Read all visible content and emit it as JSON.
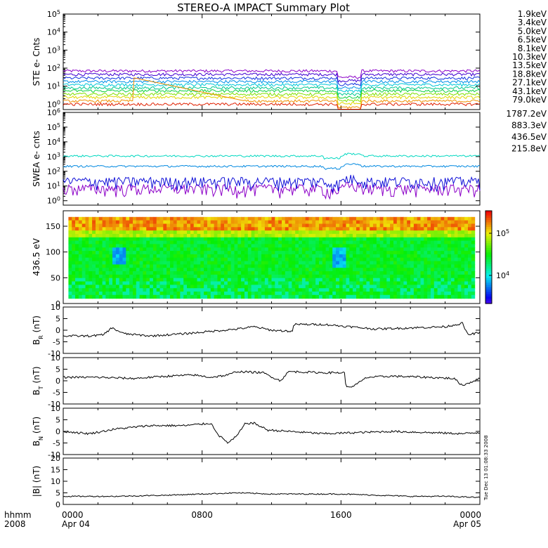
{
  "title": "STEREO-A IMPACT Summary Plot",
  "timestamp": "Tue Dec 13 01:08:33 2008",
  "x_axis": {
    "caption_lines": [
      "hhmm",
      "2008"
    ],
    "ticks": [
      {
        "lines": [
          "0000",
          "Apr 04"
        ],
        "hour": 0
      },
      {
        "lines": [
          "0800"
        ],
        "hour": 8
      },
      {
        "lines": [
          "1600"
        ],
        "hour": 16
      },
      {
        "lines": [
          "0000",
          "Apr 05"
        ],
        "hour": 24
      }
    ],
    "range_hours": [
      0,
      24
    ]
  },
  "chart_data": [
    {
      "type": "line",
      "panel": "STE",
      "ylabel": "STE e- Cnts",
      "yscale": "log",
      "ylim": [
        0.5,
        100000
      ],
      "ytick_labels": [
        "10^0",
        "10^1",
        "10^2",
        "10^3",
        "10^4",
        "10^5"
      ],
      "series": [
        {
          "name": "1.9keV",
          "color": "#8c00c8",
          "baseline": 70
        },
        {
          "name": "3.4keV",
          "color": "#4000d0",
          "baseline": 45
        },
        {
          "name": "5.0keV",
          "color": "#1030e0",
          "baseline": 28
        },
        {
          "name": "6.5keV",
          "color": "#0090e8",
          "baseline": 18
        },
        {
          "name": "8.1keV",
          "color": "#00c8d8",
          "baseline": 12
        },
        {
          "name": "10.3keV",
          "color": "#00c890",
          "baseline": 8
        },
        {
          "name": "13.5keV",
          "color": "#10d040",
          "baseline": 5.5
        },
        {
          "name": "18.8keV",
          "color": "#80e000",
          "baseline": 3.6
        },
        {
          "name": "27.1keV",
          "color": "#e0d800",
          "baseline": 2.4
        },
        {
          "name": "43.1keV",
          "color": "#f09000",
          "baseline": 1.5
        },
        {
          "name": "79.0keV",
          "color": "#e02000",
          "baseline": 1.0
        }
      ]
    },
    {
      "type": "line",
      "panel": "SWEA",
      "ylabel": "SWEA e- cnts",
      "yscale": "log",
      "ylim": [
        0.5,
        1000000
      ],
      "ytick_labels": [
        "10^0",
        "10^1",
        "10^2",
        "10^3",
        "10^4",
        "10^5",
        "10^6"
      ],
      "series": [
        {
          "name": "1787.2eV",
          "color": "#8c00c8",
          "baseline": 7
        },
        {
          "name": "883.3eV",
          "color": "#1010d8",
          "baseline": 22
        },
        {
          "name": "436.5eV",
          "color": "#0088e0",
          "baseline": 220
        },
        {
          "name": "215.8eV",
          "color": "#00d8c0",
          "baseline": 1100
        }
      ]
    },
    {
      "type": "heatmap",
      "panel": "pitch-angle",
      "ylabel": "436.5 eV",
      "ylim": [
        0,
        180
      ],
      "yticks": [
        0,
        50,
        100,
        150
      ],
      "colorbar": {
        "scale": "log",
        "tick_labels": [
          "10^4",
          "10^5"
        ]
      }
    },
    {
      "type": "line",
      "panel": "BR",
      "ylabel": "B",
      "ylabel_sub": "R",
      "ylabel_unit": "(nT)",
      "ylim": [
        -10,
        10
      ],
      "yticks": [
        -10,
        -5,
        0,
        5,
        10
      ],
      "x": [
        0,
        1.5,
        2.3,
        2.8,
        3.5,
        5,
        7,
        8.5,
        10,
        11,
        12,
        13.2,
        13.3,
        15,
        16.5,
        18,
        20,
        22,
        23,
        23.3,
        24
      ],
      "values": [
        -2.5,
        -2.5,
        -2,
        1,
        -1.5,
        -2.5,
        -1.5,
        -0.5,
        0.5,
        1.5,
        0,
        -0.5,
        2.5,
        2.5,
        1.5,
        0.5,
        1,
        1.5,
        3,
        -2,
        -1
      ]
    },
    {
      "type": "line",
      "panel": "BT",
      "ylabel": "B",
      "ylabel_sub": "T",
      "ylabel_unit": "(nT)",
      "ylim": [
        -10,
        10
      ],
      "yticks": [
        -10,
        -5,
        0,
        5,
        10
      ],
      "x": [
        0,
        2,
        4,
        6,
        7.5,
        8.5,
        9.5,
        10,
        11.5,
        12.5,
        13,
        15,
        16.2,
        16.3,
        16.8,
        17.5,
        19,
        21,
        22.5,
        23,
        24
      ],
      "values": [
        1.5,
        1.5,
        1,
        2,
        2.5,
        1.5,
        2.5,
        4,
        3.5,
        0,
        4,
        3.5,
        3.5,
        -3,
        -2,
        1.5,
        2,
        1.5,
        1,
        -2,
        1
      ]
    },
    {
      "type": "line",
      "panel": "BN",
      "ylabel": "B",
      "ylabel_sub": "N",
      "ylabel_unit": "(nT)",
      "ylim": [
        -10,
        10
      ],
      "yticks": [
        -10,
        -5,
        0,
        5,
        10
      ],
      "x": [
        0,
        1.5,
        3,
        5,
        7,
        8.5,
        9,
        9.5,
        10,
        10.5,
        11,
        11.8,
        12,
        13,
        15,
        17,
        19,
        21,
        23,
        24
      ],
      "values": [
        0,
        -1,
        1,
        2.5,
        2.5,
        3.5,
        -2,
        -5,
        -2,
        3.5,
        3.5,
        0.5,
        0.5,
        0,
        -1,
        -0.5,
        0,
        -0.5,
        -1,
        -0.5
      ]
    },
    {
      "type": "line",
      "panel": "B",
      "ylabel": "|B| (nT)",
      "ylim": [
        0,
        20
      ],
      "yticks": [
        0,
        5,
        10,
        15,
        20
      ],
      "x": [
        0,
        3,
        6,
        8,
        10,
        12,
        14,
        16,
        18,
        20,
        22,
        24
      ],
      "values": [
        3.5,
        3.5,
        4,
        4.5,
        5,
        4.5,
        4.5,
        4.5,
        4,
        3.5,
        3.5,
        3
      ]
    }
  ]
}
